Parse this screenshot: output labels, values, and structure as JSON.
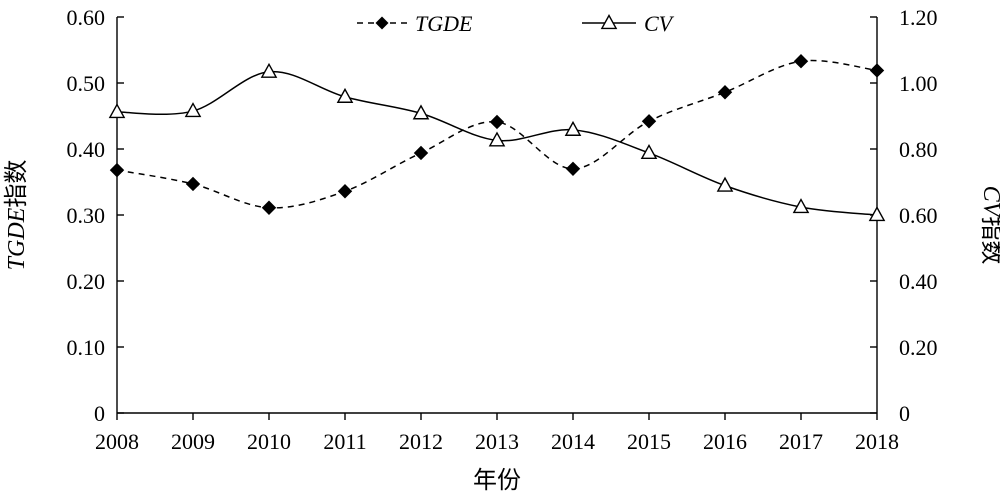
{
  "chart_data": {
    "type": "line",
    "xlabel": "年份",
    "ylabel_left": {
      "italic": "TGDE",
      "rest": "指数"
    },
    "ylabel_right": {
      "italic": "CV",
      "rest": "指数"
    },
    "categories": [
      "2008",
      "2009",
      "2010",
      "2011",
      "2012",
      "2013",
      "2014",
      "2015",
      "2016",
      "2017",
      "2018"
    ],
    "ylim_left": [
      0,
      0.6
    ],
    "ylim_right": [
      0,
      1.2
    ],
    "yticks_left": [
      "0",
      "0.10",
      "0.20",
      "0.30",
      "0.40",
      "0.50",
      "0.60"
    ],
    "yticks_right": [
      "0",
      "0.20",
      "0.40",
      "0.60",
      "0.80",
      "1.00",
      "1.20"
    ],
    "grid": false,
    "legend_position": "top",
    "series": [
      {
        "name": "TGDE",
        "axis": "left",
        "style": "dashed",
        "marker": "diamond-filled",
        "values": [
          0.368,
          0.347,
          0.311,
          0.336,
          0.394,
          0.441,
          0.37,
          0.442,
          0.486,
          0.533,
          0.519
        ]
      },
      {
        "name": "CV",
        "axis": "right",
        "style": "solid",
        "marker": "triangle-open",
        "values": [
          0.912,
          0.915,
          1.034,
          0.958,
          0.908,
          0.826,
          0.858,
          0.788,
          0.689,
          0.624,
          0.6
        ]
      }
    ]
  }
}
